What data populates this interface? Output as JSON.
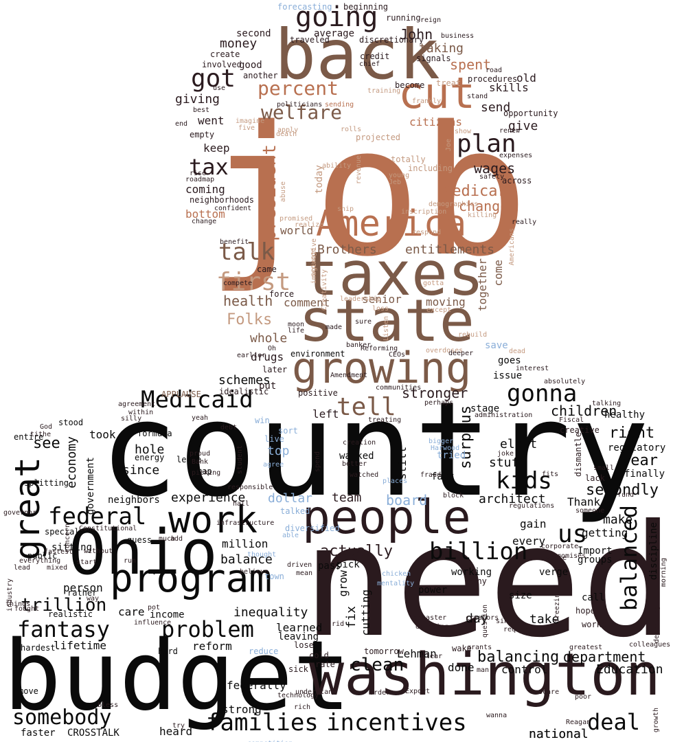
{
  "palette": {
    "black": "#0a0a0a",
    "dark": "#2a1a1e",
    "brown": "#7b5a48",
    "copper": "#b87050",
    "tan": "#c49a80",
    "blue": "#8aaed8"
  },
  "words": [
    {
      "t": "job",
      "c": "copper"
    },
    {
      "t": "country",
      "c": "black"
    },
    {
      "t": "need",
      "c": "dark"
    },
    {
      "t": "budget",
      "c": "black"
    },
    {
      "t": "back",
      "c": "brown"
    },
    {
      "t": "taxes",
      "c": "brown"
    },
    {
      "t": "state",
      "c": "brown"
    },
    {
      "t": "America",
      "c": "copper"
    },
    {
      "t": "washington",
      "c": "dark"
    },
    {
      "t": "people",
      "c": "dark"
    },
    {
      "t": "Ohio",
      "c": "black"
    },
    {
      "t": "growing",
      "c": "brown"
    },
    {
      "t": "cut",
      "c": "copper"
    },
    {
      "t": "program",
      "c": "black"
    },
    {
      "t": "work",
      "c": "black"
    },
    {
      "t": "great",
      "c": "black"
    },
    {
      "t": "going",
      "c": "dark"
    },
    {
      "t": "president",
      "c": "copper"
    },
    {
      "t": "plan",
      "c": "dark"
    },
    {
      "t": "percent",
      "c": "copper"
    },
    {
      "t": "welfare",
      "c": "brown"
    },
    {
      "t": "first",
      "c": "tan"
    },
    {
      "t": "talk",
      "c": "brown"
    },
    {
      "t": "got",
      "c": "dark"
    },
    {
      "t": "tax",
      "c": "dark"
    },
    {
      "t": "Medicaid",
      "c": "black"
    },
    {
      "t": "gonna",
      "c": "black"
    },
    {
      "t": "tell",
      "c": "brown"
    },
    {
      "t": "kids",
      "c": "black"
    },
    {
      "t": "federal",
      "c": "black"
    },
    {
      "t": "billion",
      "c": "black"
    },
    {
      "t": "us",
      "c": "black"
    },
    {
      "t": "balanced",
      "c": "black"
    },
    {
      "t": "problem",
      "c": "black"
    },
    {
      "t": "fantasy",
      "c": "black"
    },
    {
      "t": "families",
      "c": "black"
    },
    {
      "t": "incentives",
      "c": "black"
    },
    {
      "t": "deal",
      "c": "black"
    },
    {
      "t": "somebody",
      "c": "black"
    },
    {
      "t": "trillion",
      "c": "black"
    },
    {
      "t": "clean",
      "c": "black"
    },
    {
      "t": "Folks",
      "c": "tan"
    },
    {
      "t": "Medicare",
      "c": "copper"
    },
    {
      "t": "changed",
      "c": "copper"
    },
    {
      "t": "wages",
      "c": "dark"
    },
    {
      "t": "spent",
      "c": "copper"
    },
    {
      "t": "John",
      "c": "dark"
    },
    {
      "t": "Brothers",
      "c": "brown"
    },
    {
      "t": "entitlements",
      "c": "brown"
    },
    {
      "t": "health",
      "c": "brown"
    },
    {
      "t": "whole",
      "c": "brown"
    },
    {
      "t": "drugs",
      "c": "dark"
    },
    {
      "t": "money",
      "c": "dark"
    },
    {
      "t": "giving",
      "c": "dark"
    },
    {
      "t": "went",
      "c": "dark"
    },
    {
      "t": "keep",
      "c": "dark"
    },
    {
      "t": "coming",
      "c": "dark"
    },
    {
      "t": "bottom",
      "c": "copper"
    },
    {
      "t": "taking",
      "c": "brown"
    },
    {
      "t": "citizens",
      "c": "copper"
    },
    {
      "t": "give",
      "c": "dark"
    },
    {
      "t": "send",
      "c": "dark"
    },
    {
      "t": "skills",
      "c": "dark"
    },
    {
      "t": "old",
      "c": "dark"
    },
    {
      "t": "today",
      "c": "tan"
    },
    {
      "t": "world",
      "c": "brown"
    },
    {
      "t": "comment",
      "c": "brown"
    },
    {
      "t": "senior",
      "c": "brown"
    },
    {
      "t": "moving",
      "c": "brown"
    },
    {
      "t": "come",
      "c": "brown"
    },
    {
      "t": "together",
      "c": "brown"
    },
    {
      "t": "schemes",
      "c": "black"
    },
    {
      "t": "see",
      "c": "black"
    },
    {
      "t": "economy",
      "c": "black"
    },
    {
      "t": "took",
      "c": "black"
    },
    {
      "t": "left",
      "c": "dark"
    },
    {
      "t": "stronger",
      "c": "dark"
    },
    {
      "t": "surplus",
      "c": "black"
    },
    {
      "t": "children",
      "c": "black"
    },
    {
      "t": "right",
      "c": "black"
    },
    {
      "t": "year",
      "c": "black"
    },
    {
      "t": "secondly",
      "c": "black"
    },
    {
      "t": "make",
      "c": "black"
    },
    {
      "t": "stuff",
      "c": "black"
    },
    {
      "t": "elect",
      "c": "black"
    },
    {
      "t": "architect",
      "c": "black"
    },
    {
      "t": "dollar",
      "c": "blue"
    },
    {
      "t": "board",
      "c": "blue"
    },
    {
      "t": "top",
      "c": "blue"
    },
    {
      "t": "team",
      "c": "dark"
    },
    {
      "t": "actually",
      "c": "dark"
    },
    {
      "t": "hole",
      "c": "black"
    },
    {
      "t": "since",
      "c": "black"
    },
    {
      "t": "experience",
      "c": "black"
    },
    {
      "t": "balance",
      "c": "black"
    },
    {
      "t": "million",
      "c": "black"
    },
    {
      "t": "person",
      "c": "black"
    },
    {
      "t": "inequality",
      "c": "black"
    },
    {
      "t": "care",
      "c": "black"
    },
    {
      "t": "income",
      "c": "black"
    },
    {
      "t": "reform",
      "c": "black"
    },
    {
      "t": "lifetime",
      "c": "black"
    },
    {
      "t": "government",
      "c": "black"
    },
    {
      "t": "take",
      "c": "black"
    },
    {
      "t": "day",
      "c": "black"
    },
    {
      "t": "balancing",
      "c": "black"
    },
    {
      "t": "department",
      "c": "black"
    },
    {
      "t": "Education",
      "c": "black"
    },
    {
      "t": "control",
      "c": "black"
    },
    {
      "t": "done",
      "c": "black"
    },
    {
      "t": "Lehman",
      "c": "black"
    },
    {
      "t": "federally",
      "c": "black"
    },
    {
      "t": "strong",
      "c": "black"
    },
    {
      "t": "heard",
      "c": "black"
    },
    {
      "t": "faster",
      "c": "black"
    },
    {
      "t": "CROSSTALK",
      "c": "black"
    },
    {
      "t": "national",
      "c": "black"
    },
    {
      "t": "national",
      "c": "black"
    },
    {
      "t": "fix",
      "c": "black"
    },
    {
      "t": "cutting",
      "c": "black"
    },
    {
      "t": "grow",
      "c": "black"
    },
    {
      "t": "still",
      "c": "black"
    },
    {
      "t": "learned",
      "c": "black"
    },
    {
      "t": "leaving",
      "c": "black"
    },
    {
      "t": "put",
      "c": "dark"
    },
    {
      "t": "good",
      "c": "dark"
    },
    {
      "t": "average",
      "c": "dark"
    },
    {
      "t": "second",
      "c": "dark"
    },
    {
      "t": "gain",
      "c": "black"
    },
    {
      "t": "getting",
      "c": "black"
    },
    {
      "t": "every",
      "c": "black"
    },
    {
      "t": "Thank",
      "c": "black"
    },
    {
      "t": "call",
      "c": "black"
    },
    {
      "t": "power",
      "c": "black"
    },
    {
      "t": "size",
      "c": "black"
    },
    {
      "t": "working",
      "c": "black"
    },
    {
      "t": "verge",
      "c": "black"
    },
    {
      "t": "groups",
      "c": "black"
    },
    {
      "t": "Import",
      "c": "black"
    },
    {
      "t": "discipline",
      "c": "black"
    },
    {
      "t": "finally",
      "c": "black"
    },
    {
      "t": "regulatory",
      "c": "black"
    },
    {
      "t": "healthy",
      "c": "black"
    },
    {
      "t": "issue",
      "c": "black"
    },
    {
      "t": "goes",
      "c": "black"
    },
    {
      "t": "save",
      "c": "blue"
    },
    {
      "t": "stage",
      "c": "black"
    },
    {
      "t": "environment",
      "c": "black"
    },
    {
      "t": "APPLAUSE",
      "c": "brown"
    },
    {
      "t": "walked",
      "c": "black"
    },
    {
      "t": "pass",
      "c": "black"
    },
    {
      "t": "pick",
      "c": "black"
    },
    {
      "t": "neighbors",
      "c": "black"
    },
    {
      "t": "sitting",
      "c": "black"
    },
    {
      "t": "stood",
      "c": "black"
    },
    {
      "t": "energy",
      "c": "black"
    },
    {
      "t": "entire",
      "c": "black"
    },
    {
      "t": "splitting",
      "c": "black"
    },
    {
      "t": "special",
      "c": "black"
    },
    {
      "t": "public",
      "c": "black"
    },
    {
      "t": "realistic",
      "c": "black"
    },
    {
      "t": "hardest",
      "c": "black"
    },
    {
      "t": "guess",
      "c": "black"
    },
    {
      "t": "leave",
      "c": "black"
    },
    {
      "t": "formula",
      "c": "black"
    },
    {
      "t": "map",
      "c": "black"
    },
    {
      "t": "hard",
      "c": "black"
    },
    {
      "t": "rather",
      "c": "black"
    },
    {
      "t": "move",
      "c": "black"
    },
    {
      "t": "fact",
      "c": "black"
    },
    {
      "t": "sort",
      "c": "blue"
    },
    {
      "t": "live",
      "c": "blue"
    },
    {
      "t": "reduce",
      "c": "blue"
    },
    {
      "t": "win",
      "c": "blue"
    },
    {
      "t": "diversified",
      "c": "blue"
    },
    {
      "t": "town",
      "c": "blue"
    },
    {
      "t": "talked",
      "c": "blue"
    },
    {
      "t": "tried",
      "c": "blue"
    },
    {
      "t": "bigger",
      "c": "blue"
    },
    {
      "t": "Harwood",
      "c": "blue"
    },
    {
      "t": "places",
      "c": "blue"
    },
    {
      "t": "agree",
      "c": "blue"
    },
    {
      "t": "chicken",
      "c": "blue"
    },
    {
      "t": "mentality",
      "c": "blue"
    },
    {
      "t": "able",
      "c": "blue"
    },
    {
      "t": "thought",
      "c": "blue"
    },
    {
      "t": "competition",
      "c": "blue"
    },
    {
      "t": "forecasting",
      "c": "blue"
    },
    {
      "t": "beginning",
      "c": "dark"
    },
    {
      "t": "traveled",
      "c": "dark"
    },
    {
      "t": "discretionary",
      "c": "dark"
    },
    {
      "t": "running",
      "c": "dark"
    },
    {
      "t": "reign",
      "c": "dark"
    },
    {
      "t": "business",
      "c": "dark"
    },
    {
      "t": "create",
      "c": "dark"
    },
    {
      "t": "involved",
      "c": "dark"
    },
    {
      "t": "another",
      "c": "dark"
    },
    {
      "t": "credit",
      "c": "dark"
    },
    {
      "t": "chief",
      "c": "dark"
    },
    {
      "t": "signals",
      "c": "dark"
    },
    {
      "t": "use",
      "c": "dark"
    },
    {
      "t": "procedures",
      "c": "dark"
    },
    {
      "t": "road",
      "c": "dark"
    },
    {
      "t": "stand",
      "c": "dark"
    },
    {
      "t": "opportunity",
      "c": "dark"
    },
    {
      "t": "renew",
      "c": "dark"
    },
    {
      "t": "expenses",
      "c": "dark"
    },
    {
      "t": "across",
      "c": "dark"
    },
    {
      "t": "safety",
      "c": "dark"
    },
    {
      "t": "really",
      "c": "dark"
    },
    {
      "t": "best",
      "c": "dark"
    },
    {
      "t": "end",
      "c": "dark"
    },
    {
      "t": "empty",
      "c": "dark"
    },
    {
      "t": "rise",
      "c": "dark"
    },
    {
      "t": "roadmap",
      "c": "dark"
    },
    {
      "t": "neighborhoods",
      "c": "dark"
    },
    {
      "t": "change",
      "c": "dark"
    },
    {
      "t": "confident",
      "c": "dark"
    },
    {
      "t": "benefit",
      "c": "dark"
    },
    {
      "t": "compete",
      "c": "dark"
    },
    {
      "t": "came",
      "c": "dark"
    },
    {
      "t": "force",
      "c": "dark"
    },
    {
      "t": "moon",
      "c": "dark"
    },
    {
      "t": "life",
      "c": "dark"
    },
    {
      "t": "made",
      "c": "dark"
    },
    {
      "t": "sure",
      "c": "dark"
    },
    {
      "t": "Oh",
      "c": "dark"
    },
    {
      "t": "later",
      "c": "dark"
    },
    {
      "t": "earlier",
      "c": "dark"
    },
    {
      "t": "idealistic",
      "c": "dark"
    },
    {
      "t": "positive",
      "c": "dark"
    },
    {
      "t": "communities",
      "c": "dark"
    },
    {
      "t": "treating",
      "c": "dark"
    },
    {
      "t": "perhaps",
      "c": "dark"
    },
    {
      "t": "absolutely",
      "c": "dark"
    },
    {
      "t": "talking",
      "c": "dark"
    },
    {
      "t": "Fiscal",
      "c": "dark"
    },
    {
      "t": "creative",
      "c": "dark"
    },
    {
      "t": "dismantle",
      "c": "dark"
    },
    {
      "t": "small",
      "c": "dark"
    },
    {
      "t": "lack",
      "c": "dark"
    },
    {
      "t": "fund",
      "c": "dark"
    },
    {
      "t": "someone",
      "c": "dark"
    },
    {
      "t": "promises",
      "c": "dark"
    },
    {
      "t": "corporate",
      "c": "dark"
    },
    {
      "t": "waste",
      "c": "dark"
    },
    {
      "t": "morning",
      "c": "dark"
    },
    {
      "t": "deporting",
      "c": "dark"
    },
    {
      "t": "colleagues",
      "c": "dark"
    },
    {
      "t": "greatest",
      "c": "dark"
    },
    {
      "t": "hope",
      "c": "dark"
    },
    {
      "t": "worked",
      "c": "dark"
    },
    {
      "t": "freezing",
      "c": "dark"
    },
    {
      "t": "require",
      "c": "dark"
    },
    {
      "t": "single",
      "c": "dark"
    },
    {
      "t": "creators",
      "c": "dark"
    },
    {
      "t": "grants",
      "c": "dark"
    },
    {
      "t": "wake",
      "c": "dark"
    },
    {
      "t": "man",
      "c": "dark"
    },
    {
      "t": "scare",
      "c": "dark"
    },
    {
      "t": "Reagan",
      "c": "dark"
    },
    {
      "t": "poor",
      "c": "dark"
    },
    {
      "t": "growth",
      "c": "dark"
    },
    {
      "t": "wanna",
      "c": "dark"
    },
    {
      "t": "rich",
      "c": "dark"
    },
    {
      "t": "understand",
      "c": "dark"
    },
    {
      "t": "technology",
      "c": "dark"
    },
    {
      "t": "sick",
      "c": "dark"
    },
    {
      "t": "lose",
      "c": "dark"
    },
    {
      "t": "rate",
      "c": "dark"
    },
    {
      "t": "cold",
      "c": "dark"
    },
    {
      "t": "tomorrow",
      "c": "dark"
    },
    {
      "t": "order",
      "c": "dark"
    },
    {
      "t": "Export",
      "c": "dark"
    },
    {
      "t": "clear",
      "c": "dark"
    },
    {
      "t": "rid",
      "c": "dark"
    },
    {
      "t": "dividing",
      "c": "dark"
    },
    {
      "t": "disaster",
      "c": "dark"
    },
    {
      "t": "question",
      "c": "dark"
    },
    {
      "t": "many",
      "c": "dark"
    },
    {
      "t": "try",
      "c": "dark"
    },
    {
      "t": "bless",
      "c": "dark"
    },
    {
      "t": "fought",
      "c": "dark"
    },
    {
      "t": "lead",
      "c": "dark"
    },
    {
      "t": "mixed",
      "c": "dark"
    },
    {
      "t": "without",
      "c": "dark"
    },
    {
      "t": "start",
      "c": "dark"
    },
    {
      "t": "run",
      "c": "dark"
    },
    {
      "t": "things",
      "c": "dark"
    },
    {
      "t": "everything",
      "c": "dark"
    },
    {
      "t": "fastest",
      "c": "dark"
    },
    {
      "t": "concern",
      "c": "dark"
    },
    {
      "t": "industry",
      "c": "dark"
    },
    {
      "t": "governor",
      "c": "dark"
    },
    {
      "t": "Constitutional",
      "c": "dark"
    },
    {
      "t": "add",
      "c": "dark"
    },
    {
      "t": "infrastructure",
      "c": "dark"
    },
    {
      "t": "responsible",
      "c": "dark"
    },
    {
      "t": "hall",
      "c": "dark"
    },
    {
      "t": "believe",
      "c": "dark"
    },
    {
      "t": "driven",
      "c": "dark"
    },
    {
      "t": "mean",
      "c": "dark"
    },
    {
      "t": "much",
      "c": "dark"
    },
    {
      "t": "proud",
      "c": "dark"
    },
    {
      "t": "Bank",
      "c": "dark"
    },
    {
      "t": "picking",
      "c": "dark"
    },
    {
      "t": "student",
      "c": "dark"
    },
    {
      "t": "debt",
      "c": "dark"
    },
    {
      "t": "yeah",
      "c": "dark"
    },
    {
      "t": "silly",
      "c": "dark"
    },
    {
      "t": "within",
      "c": "dark"
    },
    {
      "t": "agreement",
      "c": "dark"
    },
    {
      "t": "God",
      "c": "dark"
    },
    {
      "t": "tithe",
      "c": "dark"
    },
    {
      "t": "creation",
      "c": "dark"
    },
    {
      "t": "better",
      "c": "dark"
    },
    {
      "t": "watched",
      "c": "dark"
    },
    {
      "t": "spend",
      "c": "dark"
    },
    {
      "t": "fraud",
      "c": "dark"
    },
    {
      "t": "administration",
      "c": "dark"
    },
    {
      "t": "joke",
      "c": "dark"
    },
    {
      "t": "fits",
      "c": "dark"
    },
    {
      "t": "regulations",
      "c": "dark"
    },
    {
      "t": "block",
      "c": "dark"
    },
    {
      "t": "influence",
      "c": "dark"
    },
    {
      "t": "pot",
      "c": "dark"
    },
    {
      "t": "way",
      "c": "dark"
    },
    {
      "t": "politicians",
      "c": "dark"
    },
    {
      "t": "become",
      "c": "dark"
    },
    {
      "t": "treat",
      "c": "tan"
    },
    {
      "t": "training",
      "c": "tan"
    },
    {
      "t": "sending",
      "c": "copper"
    },
    {
      "t": "frankly",
      "c": "tan"
    },
    {
      "t": "imagine",
      "c": "tan"
    },
    {
      "t": "five",
      "c": "tan"
    },
    {
      "t": "death",
      "c": "tan"
    },
    {
      "t": "apply",
      "c": "tan"
    },
    {
      "t": "rolls",
      "c": "tan"
    },
    {
      "t": "projected",
      "c": "tan"
    },
    {
      "t": "show",
      "c": "tan"
    },
    {
      "t": "Joe",
      "c": "tan"
    },
    {
      "t": "totally",
      "c": "tan"
    },
    {
      "t": "including",
      "c": "tan"
    },
    {
      "t": "young",
      "c": "tan"
    },
    {
      "t": "Jeb",
      "c": "tan"
    },
    {
      "t": "revenue",
      "c": "tan"
    },
    {
      "t": "ability",
      "c": "tan"
    },
    {
      "t": "abuse",
      "c": "tan"
    },
    {
      "t": "ship",
      "c": "tan"
    },
    {
      "t": "inscription",
      "c": "tan"
    },
    {
      "t": "demographics",
      "c": "tan"
    },
    {
      "t": "killing",
      "c": "tan"
    },
    {
      "t": "promised",
      "c": "tan"
    },
    {
      "t": "realize",
      "c": "tan"
    },
    {
      "t": "imaginative",
      "c": "tan"
    },
    {
      "t": "scourge",
      "c": "tan"
    },
    {
      "t": "respond",
      "c": "tan"
    },
    {
      "t": "Americans",
      "c": "tan"
    },
    {
      "t": "gotta",
      "c": "tan"
    },
    {
      "t": "Creativity",
      "c": "tan"
    },
    {
      "t": "leadership",
      "c": "tan"
    },
    {
      "t": "loss",
      "c": "tan"
    },
    {
      "t": "except",
      "c": "tan"
    },
    {
      "t": "Listen",
      "c": "tan"
    },
    {
      "t": "rebuild",
      "c": "tan"
    },
    {
      "t": "dead",
      "c": "tan"
    },
    {
      "t": "interest",
      "c": "dark"
    },
    {
      "t": "overdoses",
      "c": "tan"
    },
    {
      "t": "Reforming",
      "c": "dark"
    },
    {
      "t": "CEOs",
      "c": "dark"
    },
    {
      "t": "deeper",
      "c": "dark"
    },
    {
      "t": "banker",
      "c": "dark"
    },
    {
      "t": "Amendment",
      "c": "dark"
    },
    {
      "t": "nub",
      "c": "tan"
    },
    {
      "t": "tight",
      "c": "tan"
    }
  ]
}
